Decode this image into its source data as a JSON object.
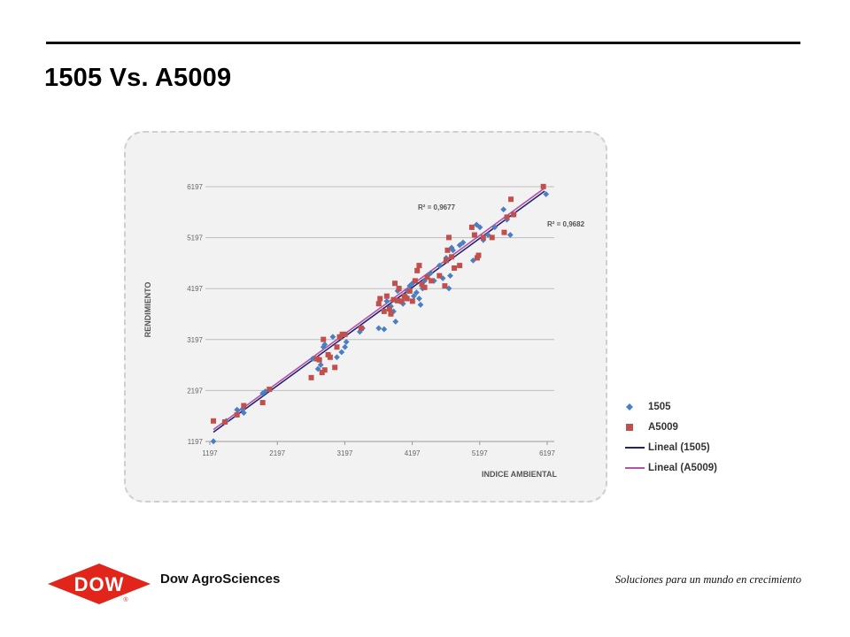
{
  "slide": {
    "title": "1505 Vs. A5009"
  },
  "colors": {
    "series_1505": "#4a7fc1",
    "series_A5009": "#c0504d",
    "trend_1505": "#1f2470",
    "trend_A5009": "#b552a8",
    "dow_red": "#e1251b"
  },
  "chart_data": {
    "type": "scatter",
    "xlabel": "INDICE AMBIENTAL",
    "ylabel": "RENDIMIENTO",
    "xlim": [
      1197,
      6197
    ],
    "ylim": [
      1197,
      6197
    ],
    "x_ticks": [
      "1197",
      "2197",
      "3197",
      "4197",
      "5197",
      "6197"
    ],
    "y_ticks": [
      "1197",
      "2197",
      "3197",
      "4197",
      "5197",
      "6197"
    ],
    "grid": "horizontal",
    "legend_position": "right",
    "annotations": [
      {
        "text": "R² = 0,9677",
        "series": "A5009"
      },
      {
        "text": "R² = 0,9682",
        "series": "1505"
      }
    ],
    "trendlines": [
      {
        "name": "Lineal (1505)",
        "series": "1505",
        "from": [
          1250,
          1380
        ],
        "to": [
          6160,
          6110
        ]
      },
      {
        "name": "Lineal (A5009)",
        "series": "A5009",
        "from": [
          1250,
          1430
        ],
        "to": [
          6160,
          6170
        ]
      }
    ],
    "series": [
      {
        "name": "1505",
        "marker": "diamond",
        "points": [
          [
            1250,
            1200
          ],
          [
            1440,
            1600
          ],
          [
            1600,
            1820
          ],
          [
            1680,
            1830
          ],
          [
            1700,
            1760
          ],
          [
            1980,
            2140
          ],
          [
            2020,
            2180
          ],
          [
            2720,
            2820
          ],
          [
            2800,
            2620
          ],
          [
            2840,
            2700
          ],
          [
            2880,
            3050
          ],
          [
            2900,
            3100
          ],
          [
            3020,
            3250
          ],
          [
            3080,
            2850
          ],
          [
            3150,
            2950
          ],
          [
            3200,
            3050
          ],
          [
            3220,
            3150
          ],
          [
            3420,
            3350
          ],
          [
            3460,
            3420
          ],
          [
            3700,
            3420
          ],
          [
            3780,
            3400
          ],
          [
            3820,
            3950
          ],
          [
            3880,
            3850
          ],
          [
            3920,
            3750
          ],
          [
            3950,
            3550
          ],
          [
            3980,
            4150
          ],
          [
            4010,
            3950
          ],
          [
            4060,
            3900
          ],
          [
            4100,
            4050
          ],
          [
            4130,
            4150
          ],
          [
            4160,
            4250
          ],
          [
            4200,
            4300
          ],
          [
            4220,
            4050
          ],
          [
            4260,
            4120
          ],
          [
            4300,
            4000
          ],
          [
            4320,
            3880
          ],
          [
            4350,
            4200
          ],
          [
            4380,
            4350
          ],
          [
            4420,
            4450
          ],
          [
            4470,
            4500
          ],
          [
            4520,
            4350
          ],
          [
            4600,
            4650
          ],
          [
            4650,
            4400
          ],
          [
            4700,
            4800
          ],
          [
            4740,
            4200
          ],
          [
            4760,
            4450
          ],
          [
            4780,
            5000
          ],
          [
            4800,
            4950
          ],
          [
            4900,
            5050
          ],
          [
            4950,
            5100
          ],
          [
            5100,
            4750
          ],
          [
            5150,
            5450
          ],
          [
            5200,
            5400
          ],
          [
            5250,
            5150
          ],
          [
            5320,
            5250
          ],
          [
            5420,
            5400
          ],
          [
            5550,
            5750
          ],
          [
            5600,
            5550
          ],
          [
            5650,
            5250
          ],
          [
            5700,
            5650
          ],
          [
            6180,
            6050
          ]
        ]
      },
      {
        "name": "A5009",
        "marker": "square",
        "points": [
          [
            1250,
            1600
          ],
          [
            1420,
            1580
          ],
          [
            1600,
            1720
          ],
          [
            1700,
            1900
          ],
          [
            1980,
            1960
          ],
          [
            2080,
            2220
          ],
          [
            2700,
            2450
          ],
          [
            2780,
            2820
          ],
          [
            2820,
            2800
          ],
          [
            2860,
            2550
          ],
          [
            2880,
            3200
          ],
          [
            2900,
            2600
          ],
          [
            2950,
            2900
          ],
          [
            2980,
            2850
          ],
          [
            3050,
            2650
          ],
          [
            3080,
            3050
          ],
          [
            3120,
            3250
          ],
          [
            3160,
            3300
          ],
          [
            3200,
            3300
          ],
          [
            3440,
            3420
          ],
          [
            3700,
            3900
          ],
          [
            3720,
            4000
          ],
          [
            3780,
            3750
          ],
          [
            3820,
            4050
          ],
          [
            3860,
            3800
          ],
          [
            3880,
            3700
          ],
          [
            3920,
            3980
          ],
          [
            3940,
            4300
          ],
          [
            3980,
            3960
          ],
          [
            4000,
            4200
          ],
          [
            4040,
            3950
          ],
          [
            4080,
            4050
          ],
          [
            4120,
            4000
          ],
          [
            4160,
            4150
          ],
          [
            4200,
            3950
          ],
          [
            4240,
            4350
          ],
          [
            4270,
            4550
          ],
          [
            4300,
            4650
          ],
          [
            4340,
            4280
          ],
          [
            4380,
            4220
          ],
          [
            4420,
            4420
          ],
          [
            4480,
            4350
          ],
          [
            4600,
            4450
          ],
          [
            4680,
            4250
          ],
          [
            4700,
            4750
          ],
          [
            4720,
            4950
          ],
          [
            4740,
            5200
          ],
          [
            4780,
            4820
          ],
          [
            4820,
            4600
          ],
          [
            4900,
            4650
          ],
          [
            5080,
            5400
          ],
          [
            5120,
            5250
          ],
          [
            5160,
            4800
          ],
          [
            5180,
            4850
          ],
          [
            5250,
            5200
          ],
          [
            5380,
            5200
          ],
          [
            5560,
            5300
          ],
          [
            5600,
            5600
          ],
          [
            5660,
            5950
          ],
          [
            5700,
            5650
          ],
          [
            6140,
            6200
          ]
        ]
      }
    ]
  },
  "legend": {
    "items": [
      {
        "label": "1505"
      },
      {
        "label": "A5009"
      },
      {
        "label": "Lineal (1505)"
      },
      {
        "label": "Lineal (A5009)"
      }
    ]
  },
  "footer": {
    "logo_text": "DOW",
    "logo_mark": "®",
    "brand": "Dow AgroSciences",
    "tagline": "Soluciones para un mundo en crecimiento"
  }
}
